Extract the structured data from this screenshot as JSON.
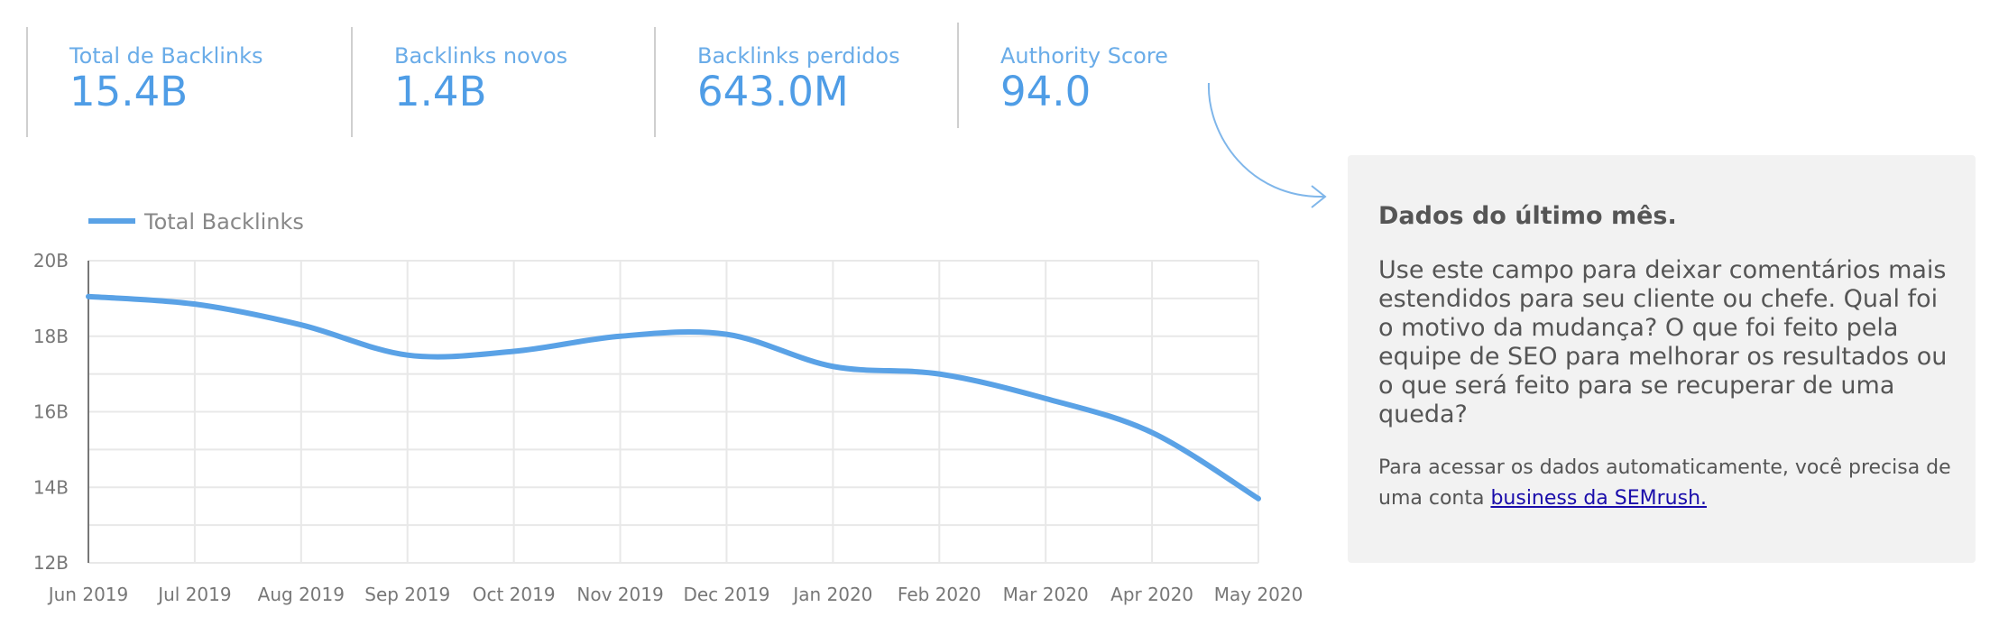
{
  "kpis": [
    {
      "label": "Total de Backlinks",
      "value": "15.4B"
    },
    {
      "label": "Backlinks novos",
      "value": "1.4B"
    },
    {
      "label": "Backlinks perdidos",
      "value": "643.0M"
    },
    {
      "label": "Authority Score",
      "value": "94.0"
    }
  ],
  "note": {
    "title": "Dados do último mês.",
    "body": "Use este campo para deixar comentários mais estendidos para seu cliente ou chefe. Qual foi o motivo da mudança? O que foi feito pela equipe de SEO para melhorar os resultados ou o que será feito para se recuperar de uma queda?",
    "footer_text": "Para acessar os dados automaticamente, você precisa de uma conta ",
    "footer_link": "business da SEMrush."
  },
  "colors": {
    "series": "#5aa2e6",
    "kpi_text": "#4f9de6",
    "grid": "#e8e8e8",
    "axis_text": "#777777",
    "note_bg": "#f2f2f2"
  },
  "chart_data": {
    "type": "line",
    "title": "",
    "xlabel": "",
    "ylabel": "",
    "legend": "top-left",
    "grid": true,
    "categories": [
      "Jun 2019",
      "Jul 2019",
      "Aug 2019",
      "Sep 2019",
      "Oct 2019",
      "Nov 2019",
      "Dec 2019",
      "Jan 2020",
      "Feb 2020",
      "Mar 2020",
      "Apr 2020",
      "May 2020"
    ],
    "y_ticks": [
      "12B",
      "14B",
      "16B",
      "18B",
      "20B"
    ],
    "ylim": [
      12,
      20
    ],
    "y_unit": "B",
    "series": [
      {
        "name": "Total Backlinks",
        "values": [
          19.05,
          18.85,
          18.3,
          17.5,
          17.6,
          18.0,
          18.05,
          17.2,
          17.0,
          16.35,
          15.45,
          13.7
        ]
      }
    ]
  }
}
